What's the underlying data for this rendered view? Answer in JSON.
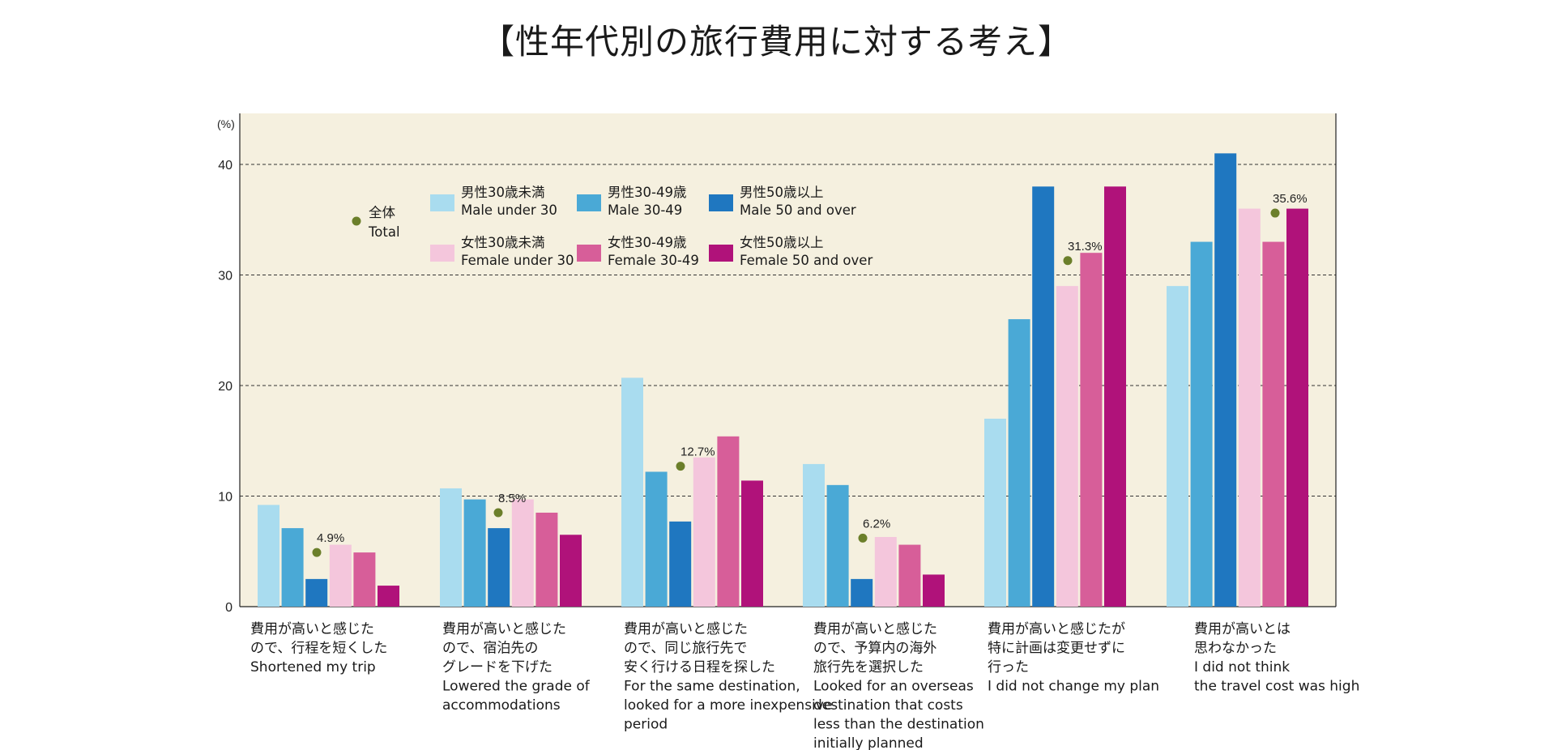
{
  "title": "【性年代別の旅行費用に対する考え】",
  "colors": {
    "plot_bg": "#f5f0df",
    "grid": "#333333",
    "total_marker": "#6b7f2a"
  },
  "chart_data": {
    "type": "bar",
    "y_unit": "(%)",
    "ylim": [
      0,
      45
    ],
    "yticks": [
      0,
      10,
      20,
      30,
      40
    ],
    "grid": "dashed horizontal",
    "legend_placement": "top-left inside",
    "total_legend": [
      "全体",
      "Total"
    ],
    "categories": [
      [
        "費用が高いと感じた",
        "ので、行程を短くした",
        "Shortened my trip"
      ],
      [
        "費用が高いと感じた",
        "ので、宿泊先の",
        "グレードを下げた",
        "Lowered the grade of",
        "accommodations"
      ],
      [
        "費用が高いと感じた",
        "ので、同じ旅行先で",
        "安く行ける日程を探した",
        "For the same destination,",
        "looked for a more inexpensive",
        "period"
      ],
      [
        "費用が高いと感じた",
        "ので、予算内の海外",
        "旅行先を選択した",
        "Looked for an overseas",
        "destination that costs",
        "less than the destination",
        "initially planned"
      ],
      [
        "費用が高いと感じたが",
        "特に計画は変更せずに",
        "行った",
        "I did not change my plan"
      ],
      [
        "費用が高いとは",
        "思わなかった",
        "I did not think",
        "the travel cost was high"
      ]
    ],
    "series": [
      {
        "name": [
          "男性30歳未満",
          "Male under 30"
        ],
        "color": "#a9dcef",
        "values": [
          9.2,
          10.7,
          20.7,
          12.9,
          17.0,
          29.0
        ]
      },
      {
        "name": [
          "男性30-49歳",
          "Male 30-49"
        ],
        "color": "#4aa9d6",
        "values": [
          7.1,
          9.7,
          12.2,
          11.0,
          26.0,
          33.0
        ]
      },
      {
        "name": [
          "男性50歳以上",
          "Male 50 and over"
        ],
        "color": "#1f77c0",
        "values": [
          2.5,
          7.1,
          7.7,
          2.5,
          38.0,
          41.0
        ]
      },
      {
        "name": [
          "女性30歳未満",
          "Female under 30"
        ],
        "color": "#f4c6dc",
        "values": [
          5.6,
          9.7,
          13.5,
          6.3,
          29.0,
          36.0
        ]
      },
      {
        "name": [
          "女性30-49歳",
          "Female 30-49"
        ],
        "color": "#d75e99",
        "values": [
          4.9,
          8.5,
          15.4,
          5.6,
          32.0,
          33.0
        ]
      },
      {
        "name": [
          "女性50歳以上",
          "Female 50 and over"
        ],
        "color": "#b0127a",
        "values": [
          1.9,
          6.5,
          11.4,
          2.9,
          38.0,
          36.0
        ]
      }
    ],
    "total": {
      "values": [
        4.9,
        8.5,
        12.7,
        6.2,
        31.3,
        35.6
      ],
      "labels": [
        "4.9%",
        "8.5%",
        "12.7%",
        "6.2%",
        "31.3%",
        "35.6%"
      ]
    }
  }
}
